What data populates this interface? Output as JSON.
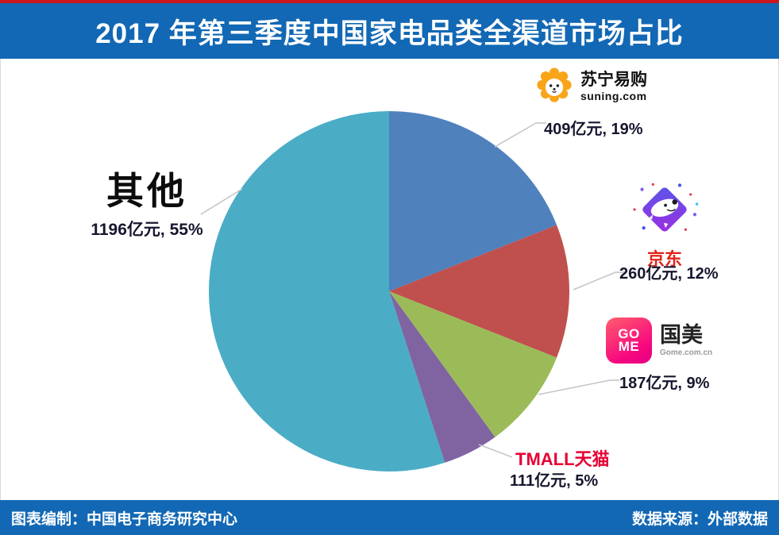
{
  "header": {
    "title": "2017 年第三季度中国家电品类全渠道市场占比"
  },
  "footer": {
    "credit": "图表编制：中国电子商务研究中心",
    "source": "数据来源：外部数据"
  },
  "theme": {
    "banner_blue": "#1268b4",
    "top_strip_red": "#c9161d",
    "leader_line_gray": "#c4c4c4",
    "value_text": "#16162e"
  },
  "logos": {
    "suning_icon": "lion-icon",
    "suning_domain": "suning.com",
    "jd_icon": "jd-dog-diamond-icon",
    "gome_line1": "GO",
    "gome_line2": "ME",
    "gome_domain": "Gome.com.cn"
  },
  "chart_data": {
    "type": "pie",
    "title": "2017 年第三季度中国家电品类全渠道市场占比",
    "unit": "亿元",
    "start_angle_deg": 0,
    "clockwise": true,
    "legend_position": "callout-labels",
    "slices": [
      {
        "name": "苏宁易购",
        "value": 409,
        "percent": 19,
        "label": "409亿元, 19%",
        "color": "#4F81BD"
      },
      {
        "name": "京东",
        "value": 260,
        "percent": 12,
        "label": "260亿元, 12%",
        "color": "#C0504D"
      },
      {
        "name": "国美",
        "value": 187,
        "percent": 9,
        "label": "187亿元, 9%",
        "color": "#9BBB59"
      },
      {
        "name": "TMALL天猫",
        "value": 111,
        "percent": 5,
        "label": "111亿元, 5%",
        "color": "#8064A2"
      },
      {
        "name": "其他",
        "value": 1196,
        "percent": 55,
        "label": "1196亿元, 55%",
        "color": "#4BACC6"
      }
    ]
  }
}
